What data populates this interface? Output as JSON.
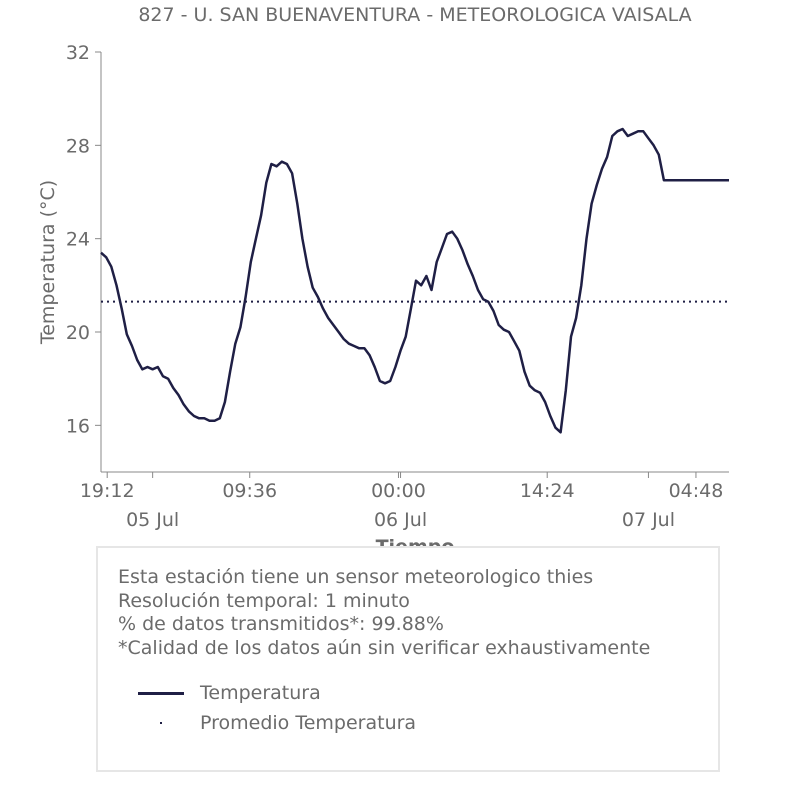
{
  "chart_data": {
    "type": "line",
    "title": "827 - U. SAN BUENAVENTURA - METEOROLOGICA VAISALA",
    "xlabel": "Tiempo",
    "ylabel": "Temperatura (°C)",
    "ylim": [
      14,
      32
    ],
    "yticks": [
      16,
      20,
      24,
      28,
      32
    ],
    "xlim": [
      0,
      60.8
    ],
    "xticks": [
      {
        "x": 0.6,
        "label": "19:12"
      },
      {
        "x": 14.4,
        "label": "09:36"
      },
      {
        "x": 28.8,
        "label": "00:00"
      },
      {
        "x": 43.2,
        "label": "14:24"
      },
      {
        "x": 57.6,
        "label": "04:48"
      }
    ],
    "x_minor_ticks": [
      5,
      29,
      53
    ],
    "x_date_labels": [
      {
        "x": 5,
        "label": "05 Jul"
      },
      {
        "x": 29,
        "label": "06 Jul"
      },
      {
        "x": 53,
        "label": "07 Jul"
      }
    ],
    "x_units": "hours since first tick label (2024-07-04 19:12)",
    "grid": false,
    "colors": {
      "series": "#1f1f45",
      "mean": "#1f1f45",
      "axis": "#6b6b6b"
    },
    "series": [
      {
        "name": "Temperatura",
        "style": "solid",
        "x": [
          0,
          0.5,
          1.0,
          1.5,
          2.0,
          2.5,
          3.0,
          3.5,
          4.0,
          4.5,
          5.0,
          5.5,
          6.0,
          6.5,
          7.0,
          7.5,
          8.0,
          8.5,
          9.0,
          9.5,
          10.0,
          10.5,
          11.0,
          11.5,
          12.0,
          12.5,
          13.0,
          13.5,
          14.0,
          14.5,
          15.0,
          15.5,
          16.0,
          16.5,
          17.0,
          17.5,
          18.0,
          18.5,
          19.0,
          19.5,
          20.0,
          20.5,
          21.0,
          21.5,
          22.0,
          22.5,
          23.0,
          23.5,
          24.0,
          24.5,
          25.0,
          25.5,
          26.0,
          26.5,
          27.0,
          27.5,
          28.0,
          28.5,
          29.0,
          29.5,
          30.0,
          30.5,
          31.0,
          31.5,
          32.0,
          32.5,
          33.0,
          33.5,
          34.0,
          34.5,
          35.0,
          35.5,
          36.0,
          36.5,
          37.0,
          37.5,
          38.0,
          38.5,
          39.0,
          39.5,
          40.0,
          40.5,
          41.0,
          41.5,
          42.0,
          42.5,
          43.0,
          43.5,
          44.0,
          44.5,
          45.0,
          45.5,
          46.0,
          46.5,
          47.0,
          47.5,
          48.0,
          48.5,
          49.0,
          49.5,
          50.0,
          50.5,
          51.0,
          51.5,
          52.0,
          52.5,
          53.0,
          53.5,
          54.0,
          54.5,
          55.0,
          55.5,
          56.0,
          56.5,
          57.0,
          57.5,
          58.0,
          58.5,
          59.0,
          59.5,
          60.0,
          60.5,
          60.8
        ],
        "values": [
          23.4,
          23.2,
          22.8,
          22.0,
          21.0,
          19.9,
          19.4,
          18.8,
          18.4,
          18.5,
          18.4,
          18.5,
          18.1,
          18.0,
          17.6,
          17.3,
          16.9,
          16.6,
          16.4,
          16.3,
          16.3,
          16.2,
          16.2,
          16.3,
          17.0,
          18.3,
          19.5,
          20.2,
          21.5,
          23.0,
          24.0,
          25.0,
          26.4,
          27.2,
          27.1,
          27.3,
          27.2,
          26.8,
          25.5,
          24.0,
          22.8,
          21.9,
          21.5,
          21.0,
          20.6,
          20.3,
          20.0,
          19.7,
          19.5,
          19.4,
          19.3,
          19.3,
          19.0,
          18.5,
          17.9,
          17.8,
          17.9,
          18.5,
          19.2,
          19.8,
          21.0,
          22.2,
          22.0,
          22.4,
          21.8,
          23.0,
          23.6,
          24.2,
          24.3,
          24.0,
          23.5,
          22.9,
          22.4,
          21.8,
          21.4,
          21.3,
          20.9,
          20.3,
          20.1,
          20.0,
          19.6,
          19.2,
          18.3,
          17.7,
          17.5,
          17.4,
          17.0,
          16.4,
          15.9,
          15.7,
          17.5,
          19.8,
          20.6,
          22.0,
          24.0,
          25.5,
          26.3,
          27.0,
          27.5,
          28.4,
          28.6,
          28.7,
          28.4,
          28.5,
          28.6,
          28.6,
          28.3,
          28.0,
          27.6,
          26.5,
          26.5,
          26.5,
          26.5,
          26.5,
          26.5,
          26.5,
          26.5,
          26.5,
          26.5,
          26.5,
          26.5,
          26.5,
          26.5
        ]
      },
      {
        "name": "Promedio Temperatura",
        "style": "dotted",
        "value": 21.3
      }
    ]
  },
  "info": {
    "lines": [
      "Esta estación tiene un sensor meteorologico thies",
      "Resolución temporal: 1 minuto",
      "% de datos transmitidos*: 99.88%",
      "*Calidad de los datos aún sin verificar exhaustivamente"
    ]
  },
  "legend": {
    "temperatura_label": "Temperatura",
    "promedio_label": "Promedio Temperatura"
  }
}
